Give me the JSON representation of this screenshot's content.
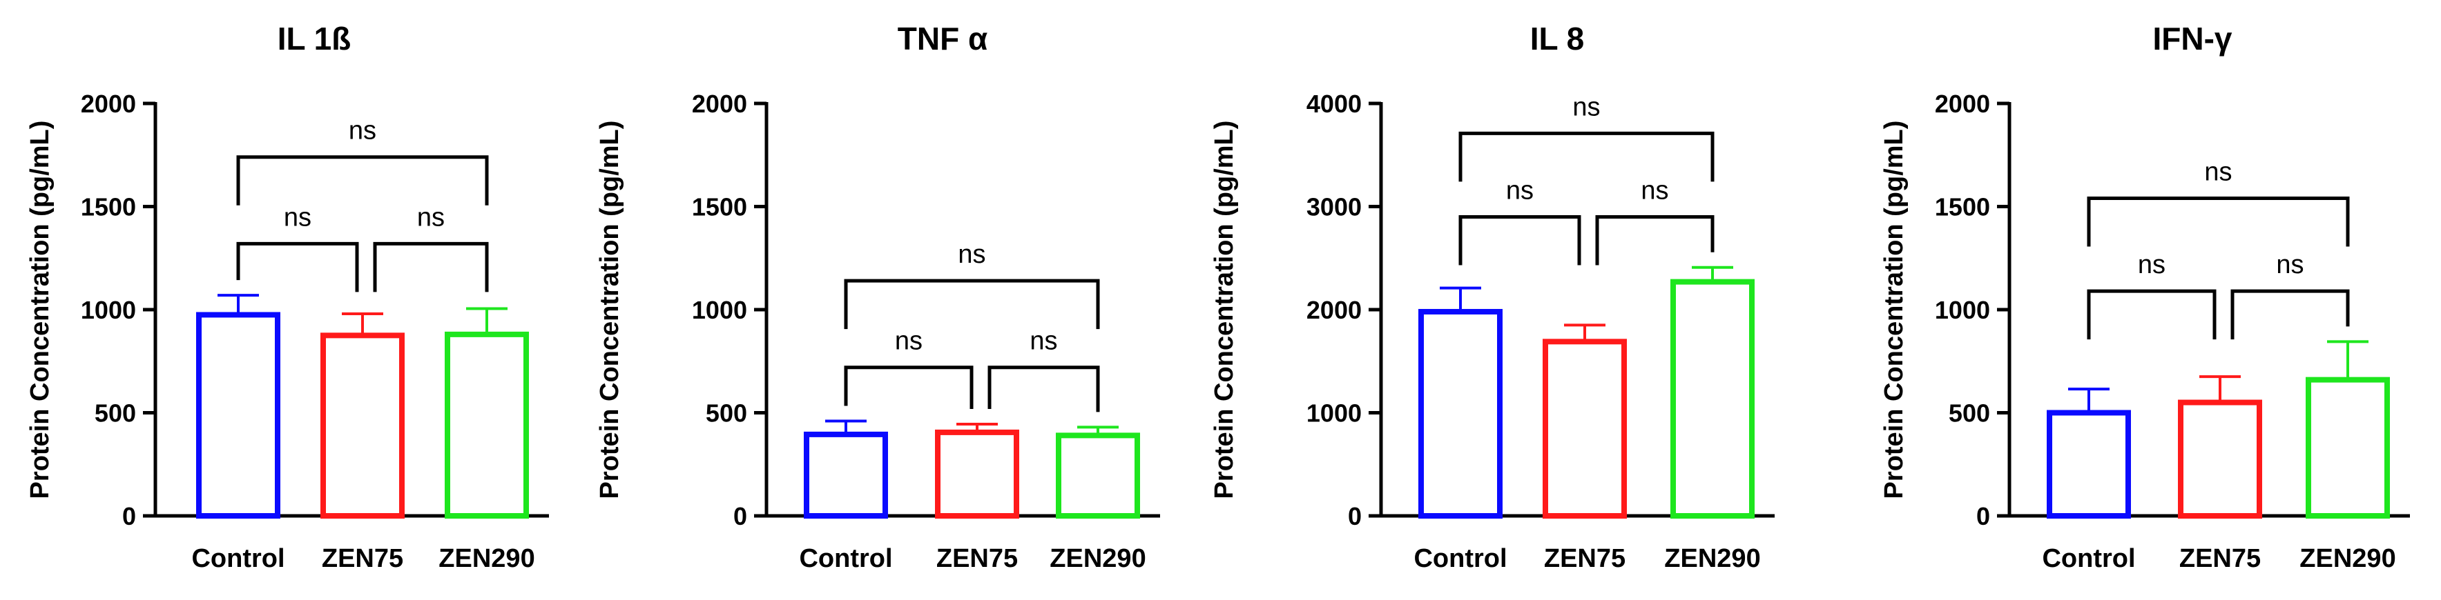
{
  "chart_data": [
    {
      "type": "bar",
      "title": "IL 1ß",
      "ylabel": "Protein Concentration (pg/mL)",
      "xlabel": "",
      "categories": [
        "Control",
        "ZEN75",
        "ZEN290"
      ],
      "values": [
        975,
        875,
        880
      ],
      "errors": [
        95,
        105,
        125
      ],
      "colors": [
        "#0a0aff",
        "#ff1a1a",
        "#1ee61e"
      ],
      "ylim": [
        0,
        2000
      ],
      "yticks": [
        "0",
        "500",
        "1000",
        "1500",
        "2000"
      ],
      "comparisons": [
        {
          "from": 0,
          "to": 1,
          "label": "ns",
          "level": 1320
        },
        {
          "from": 1,
          "to": 2,
          "label": "ns",
          "level": 1320
        },
        {
          "from": 0,
          "to": 2,
          "label": "ns",
          "level": 1740
        }
      ]
    },
    {
      "type": "bar",
      "title": "TNF α",
      "ylabel": "Protein Concentration (pg/mL)",
      "xlabel": "",
      "categories": [
        "Control",
        "ZEN75",
        "ZEN290"
      ],
      "values": [
        395,
        405,
        390
      ],
      "errors": [
        65,
        40,
        40
      ],
      "colors": [
        "#0a0aff",
        "#ff1a1a",
        "#1ee61e"
      ],
      "ylim": [
        0,
        2000
      ],
      "yticks": [
        "0",
        "500",
        "1000",
        "1500",
        "2000"
      ],
      "comparisons": [
        {
          "from": 0,
          "to": 1,
          "label": "ns",
          "level": 720
        },
        {
          "from": 1,
          "to": 2,
          "label": "ns",
          "level": 720
        },
        {
          "from": 0,
          "to": 2,
          "label": "ns",
          "level": 1140
        }
      ]
    },
    {
      "type": "bar",
      "title": "IL 8",
      "ylabel": "Protein Concentration (pg/mL)",
      "xlabel": "",
      "categories": [
        "Control",
        "ZEN75",
        "ZEN290"
      ],
      "values": [
        1980,
        1690,
        2270
      ],
      "errors": [
        230,
        160,
        140
      ],
      "colors": [
        "#0a0aff",
        "#ff1a1a",
        "#1ee61e"
      ],
      "ylim": [
        0,
        4000
      ],
      "yticks": [
        "0",
        "1000",
        "2000",
        "3000",
        "4000"
      ],
      "comparisons": [
        {
          "from": 0,
          "to": 1,
          "label": "ns",
          "level": 2900
        },
        {
          "from": 1,
          "to": 2,
          "label": "ns",
          "level": 2900
        },
        {
          "from": 0,
          "to": 2,
          "label": "ns",
          "level": 3710
        }
      ]
    },
    {
      "type": "bar",
      "title": "IFN-γ",
      "ylabel": "Protein Concentration (pg/mL)",
      "xlabel": "",
      "categories": [
        "Control",
        "ZEN75",
        "ZEN290"
      ],
      "values": [
        500,
        550,
        660
      ],
      "errors": [
        115,
        125,
        185
      ],
      "colors": [
        "#0a0aff",
        "#ff1a1a",
        "#1ee61e"
      ],
      "ylim": [
        0,
        2000
      ],
      "yticks": [
        "0",
        "500",
        "1000",
        "1500",
        "2000"
      ],
      "comparisons": [
        {
          "from": 0,
          "to": 1,
          "label": "ns",
          "level": 1090
        },
        {
          "from": 1,
          "to": 2,
          "label": "ns",
          "level": 1090
        },
        {
          "from": 0,
          "to": 2,
          "label": "ns",
          "level": 1540
        }
      ]
    }
  ]
}
